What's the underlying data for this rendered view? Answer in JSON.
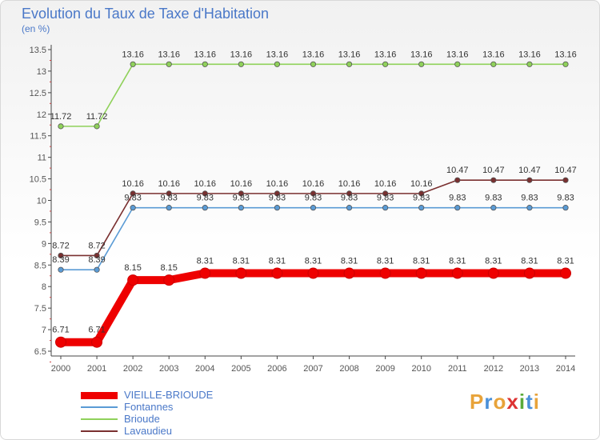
{
  "header": {
    "title": "Evolution du Taux de Taxe d'Habitation",
    "subtitle": "(en %)"
  },
  "brand": {
    "text": "Proxiti",
    "letter_colors": [
      "#e8a33a",
      "#4a90d9",
      "#e8a33a",
      "#d33",
      "#5aaa3a",
      "#4a90d9",
      "#e8a33a"
    ]
  },
  "chart_data": {
    "type": "line",
    "title": "Evolution du Taux de Taxe d'Habitation",
    "ylabel": "(en %)",
    "xlabel": "",
    "categories": [
      "2000",
      "2001",
      "2002",
      "2003",
      "2004",
      "2005",
      "2006",
      "2007",
      "2008",
      "2009",
      "2010",
      "2011",
      "2012",
      "2013",
      "2014"
    ],
    "ylim": [
      6.5,
      13.5
    ],
    "yticks": [
      "6.5",
      "7",
      "7.5",
      "8",
      "8.5",
      "9",
      "9.5",
      "10",
      "10.5",
      "11",
      "11.5",
      "12",
      "12.5",
      "13",
      "13.5"
    ],
    "grid": false,
    "legend_position": "bottom-left",
    "series": [
      {
        "name": "VIEILLE-BRIOUDE",
        "color": "#ee0000",
        "values": [
          6.71,
          6.71,
          8.15,
          8.15,
          8.31,
          8.31,
          8.31,
          8.31,
          8.31,
          8.31,
          8.31,
          8.31,
          8.31,
          8.31,
          8.31
        ],
        "labels": [
          "6.71",
          "6.71",
          "8.15",
          "8.15",
          "8.31",
          "8.31",
          "8.31",
          "8.31",
          "8.31",
          "8.31",
          "8.31",
          "8.31",
          "8.31",
          "8.31",
          "8.31"
        ]
      },
      {
        "name": "Fontannes",
        "color": "#5a9bd5",
        "values": [
          8.39,
          8.39,
          9.83,
          9.83,
          9.83,
          9.83,
          9.83,
          9.83,
          9.83,
          9.83,
          9.83,
          9.83,
          9.83,
          9.83,
          9.83
        ],
        "labels": [
          "8.39",
          "8.39",
          "9.83",
          "9.83",
          "9.83",
          "9.83",
          "9.83",
          "9.83",
          "9.83",
          "9.83",
          "9.83",
          "9.83",
          "9.83",
          "9.83",
          "9.83"
        ]
      },
      {
        "name": "Brioude",
        "color": "#8fd15a",
        "values": [
          11.72,
          11.72,
          13.16,
          13.16,
          13.16,
          13.16,
          13.16,
          13.16,
          13.16,
          13.16,
          13.16,
          13.16,
          13.16,
          13.16,
          13.16
        ],
        "labels": [
          "11.72",
          "11.72",
          "13.16",
          "13.16",
          "13.16",
          "13.16",
          "13.16",
          "13.16",
          "13.16",
          "13.16",
          "13.16",
          "13.16",
          "13.16",
          "13.16",
          "13.16"
        ]
      },
      {
        "name": "Lavaudieu",
        "color": "#7a3030",
        "values": [
          8.72,
          8.72,
          10.16,
          10.16,
          10.16,
          10.16,
          10.16,
          10.16,
          10.16,
          10.16,
          10.16,
          10.47,
          10.47,
          10.47,
          10.47
        ],
        "labels": [
          "8.72",
          "8.72",
          "10.16",
          "10.16",
          "10.16",
          "10.16",
          "10.16",
          "10.16",
          "10.16",
          "10.16",
          "10.16",
          "10.47",
          "10.47",
          "10.47",
          "10.47"
        ]
      }
    ]
  }
}
